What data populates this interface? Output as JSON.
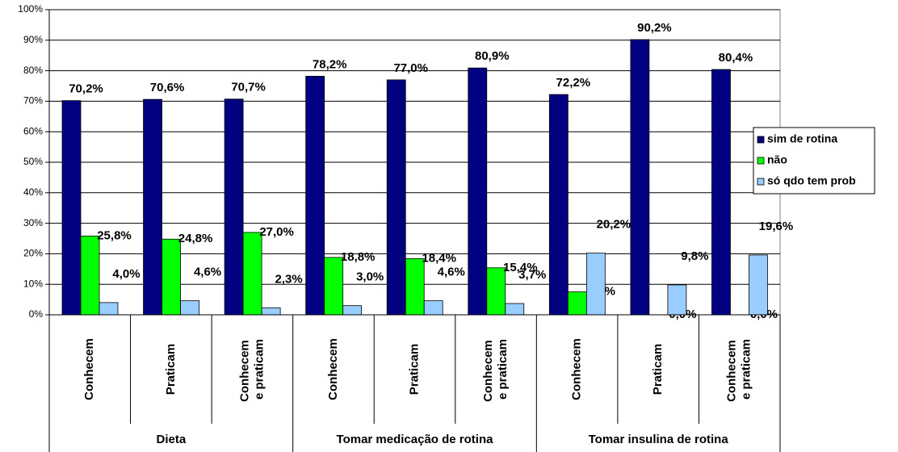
{
  "chart_data": {
    "type": "bar",
    "categories": [
      "Conhecem",
      "Praticam",
      "Conhecem e praticam",
      "Conhecem",
      "Praticam",
      "Conhecem e praticam",
      "Conhecem",
      "Praticam",
      "Conhecem e praticam"
    ],
    "groups": [
      "Dieta",
      "Tomar medicação de rotina",
      "Tomar insulina de rotina"
    ],
    "series": [
      {
        "name": "sim de rotina",
        "color": "#000080",
        "values": [
          70.2,
          70.6,
          70.7,
          78.2,
          77.0,
          80.9,
          72.2,
          90.2,
          80.4
        ],
        "value_labels": [
          "70,2%",
          "70,6%",
          "70,7%",
          "78,2%",
          "77,0%",
          "80,9%",
          "72,2%",
          "90,2%",
          "80,4%"
        ]
      },
      {
        "name": "não",
        "color": "#00ff00",
        "values": [
          25.8,
          24.8,
          27.0,
          18.8,
          18.4,
          15.4,
          7.5,
          0.0,
          0.0
        ],
        "value_labels": [
          "25,8%",
          "24,8%",
          "27,0%",
          "18,8%",
          "18,4%",
          "15,4%",
          "7,5%",
          "0,0%",
          "0,0%"
        ]
      },
      {
        "name": "só qdo tem prob",
        "color": "#99ccff",
        "values": [
          4.0,
          4.6,
          2.3,
          3.0,
          4.6,
          3.7,
          20.2,
          9.8,
          19.6
        ],
        "value_labels": [
          "4,0%",
          "4,6%",
          "2,3%",
          "3,0%",
          "4,6%",
          "3,7%",
          "20,2%",
          "9,8%",
          "19,6%"
        ]
      }
    ],
    "ylim": [
      0,
      100
    ],
    "yticks": [
      {
        "value": 0,
        "label": "0%"
      },
      {
        "value": 10,
        "label": "10%"
      },
      {
        "value": 20,
        "label": "20%"
      },
      {
        "value": 30,
        "label": "30%"
      },
      {
        "value": 40,
        "label": "40%"
      },
      {
        "value": 50,
        "label": "50%"
      },
      {
        "value": 60,
        "label": "60%"
      },
      {
        "value": 70,
        "label": "70%"
      },
      {
        "value": 80,
        "label": "80%"
      },
      {
        "value": 90,
        "label": "90%"
      },
      {
        "value": 100,
        "label": "100%"
      }
    ],
    "grid": true,
    "legend": "right"
  }
}
